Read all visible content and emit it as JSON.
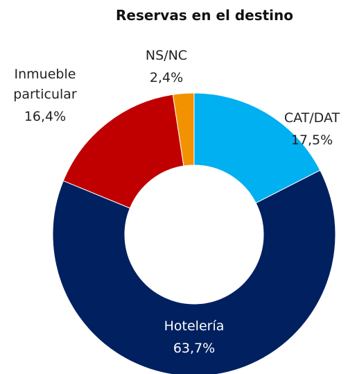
{
  "chart_data": {
    "type": "donut",
    "title": "Reservas en el destino",
    "categories": [
      "CAT/DAT",
      "Hotelería",
      "Inmueble particular",
      "NS/NC"
    ],
    "values": [
      17.5,
      63.7,
      16.4,
      2.4
    ],
    "value_labels": [
      "17,5%",
      "63,7%",
      "16,4%",
      "2,4%"
    ],
    "colors": [
      "#00b0f0",
      "#002060",
      "#c00000",
      "#f39200"
    ]
  }
}
